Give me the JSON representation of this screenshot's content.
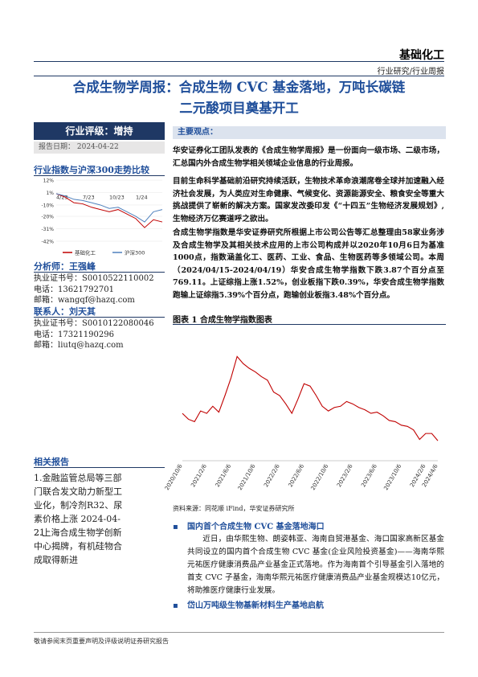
{
  "header": {
    "category": "基础化工",
    "subcategory": "行业研究/行业周报"
  },
  "title": {
    "line1": "合成生物学周报：合成生物 CVC 基金落地，万吨长碳链",
    "line2": "二元酸项目奠基开工"
  },
  "sidebar": {
    "rating": "行业评级：增持",
    "date": "报告日期：   2024-04-22",
    "analyst": "分析师：王强峰",
    "analyst_info": [
      "执业证书号：S0010522110002",
      "电话：13621792701",
      "邮箱：wangqf@hazq.com"
    ],
    "contact": "联系人：刘天其",
    "contact_info": [
      "执业证书号：S0010122080046",
      "电话：17321190296",
      "邮箱：liutq@hazq.com"
    ],
    "related_title": "相关报告",
    "related": [
      "1.金融监管总局等三部门联合发文助力新型工业化，制冷剂R32、尿素价格上涨 2024-04-21",
      "2.上海合成生物学创新中心揭牌，有机硅物合成取得新进"
    ]
  },
  "main": {
    "heading": "主要观点：",
    "paragraphs": [
      "华安证券化工团队发表的《合成生物学周报》是一份面向一级市场、二级市场，汇总国内外合成生物学相关领域企业信息的行业周报。",
      "目前生命科学基础前沿研究持续活跃，生物技术革命浪潮席卷全球并加速融入经济社会发展，为人类应对生命健康、气候变化、资源能源安全、粮食安全等重大挑战提供了崭新的解决方案。国家发改委印发《“十四五”生物经济发展规划》,生物经济万亿赛道呼之欲出。",
      "合成生物学指数是华安证券研究所根据上市公司公告等汇总整理由58家业务涉及合成生物学及其相关技术应用的上市公司构成并以2020年10月6日为基准1000点，指数涵盖化工、医药、工业、食品、生物医药等多领域公司。本周（2024/04/15-2024/04/19）华安合成生物学指数下跌3.87个百分点至769.11。上证综指上涨1.52%，创业板指下跌0.39%，华安合成生物学指数跑输上证综指5.39%个百分点，跑输创业板指3.48%个百分点。"
    ],
    "bullets": [
      {
        "heading": "国内首个合成生物 CVC 基金落地海口",
        "body": "近日，由华熙生物、朗姿韩亚、海南自贸港基金、海口国家高新区基金共同设立的国内首个合成生物 CVC 基金(企业风险投资基金)——海南华熙元祐医疗健康消费品产业基金正式落地。作为海南首个引导基金引入落地的首支 CVC 子基金，海南华熙元祐医疗健康消费品产业基金规模达10亿元，将助推医疗健康行业发展。"
      },
      {
        "heading": "岱山万吨级生物基新材料生产基地启航"
      }
    ]
  },
  "footer": "敬请参阅末页重要声明及评级说明证券研究报告",
  "chart_data": [
    {
      "type": "line",
      "title": "行业指数与沪深300走势比较",
      "categories": [
        "4/23",
        null,
        null,
        "7/23",
        null,
        null,
        "10/23",
        null,
        null,
        "1/24",
        null,
        null,
        null
      ],
      "series": [
        {
          "name": "基础化工",
          "color": "#c00000",
          "values": [
            0,
            -3,
            -8,
            -9,
            -12,
            -14,
            -16,
            -14,
            -18,
            -22,
            -30,
            -23,
            -25
          ]
        },
        {
          "name": "沪深300",
          "color": "#4f81bd",
          "values": [
            0,
            -2,
            -5,
            -6,
            -8,
            -10,
            -13,
            -12,
            -16,
            -20,
            -25,
            -16,
            -14
          ]
        }
      ],
      "ylim": [
        -42,
        12
      ],
      "yticks": [
        {
          "value": 12,
          "label": "12%"
        },
        {
          "value": 1,
          "label": "1%"
        },
        {
          "value": -10,
          "label": "-10%"
        },
        {
          "value": -20,
          "label": "-20%"
        },
        {
          "value": -31,
          "label": "-31%"
        },
        {
          "value": -42,
          "label": "-42%"
        }
      ]
    },
    {
      "type": "line",
      "title": "图表 1 合成生物学指数图表",
      "categories": [
        "2020/10/6",
        null,
        null,
        null,
        "2021/2/6",
        null,
        null,
        null,
        "2021/6/6",
        null,
        null,
        null,
        "2021/10/6",
        null,
        null,
        null,
        "2022/2/6",
        null,
        null,
        null,
        "2022/6/6",
        null,
        null,
        null,
        "2022/10/6",
        null,
        null,
        null,
        "2023/2/6",
        null,
        null,
        null,
        "2023/6/6",
        null,
        null,
        null,
        "2023/10/6",
        null,
        null,
        null,
        "2024/2/6",
        null,
        "2024/4/6"
      ],
      "values": [
        1000,
        950,
        930,
        1020,
        1000,
        1060,
        1010,
        1150,
        1300,
        1480,
        1420,
        1380,
        1350,
        1310,
        1280,
        1180,
        1150,
        1080,
        1000,
        1120,
        1250,
        1230,
        1150,
        1060,
        1020,
        1050,
        1060,
        1100,
        1080,
        1050,
        1030,
        1000,
        1010,
        980,
        940,
        930,
        900,
        890,
        860,
        780,
        830,
        830,
        769.11
      ],
      "color": "#c00000",
      "ylim": [
        600,
        1700
      ],
      "source": "资料来源：同花顺 iFind，华安证券研究所"
    }
  ]
}
